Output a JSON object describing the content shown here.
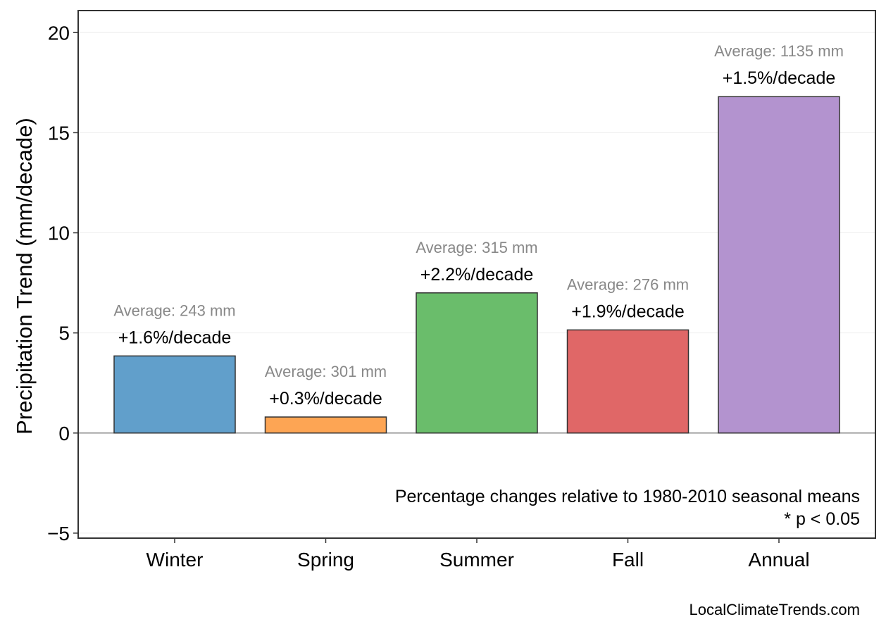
{
  "chart_data": {
    "type": "bar",
    "title": "",
    "xlabel": "",
    "ylabel": "Precipitation Trend (mm/decade)",
    "ylim": [
      -5.25,
      21.1
    ],
    "yticks": [
      -5,
      0,
      5,
      10,
      15,
      20
    ],
    "ytick_labels": [
      "−5",
      "0",
      "5",
      "10",
      "15",
      "20"
    ],
    "grid": "horizontal, light",
    "categories": [
      "Winter",
      "Spring",
      "Summer",
      "Fall",
      "Annual"
    ],
    "values": [
      3.85,
      0.8,
      7.0,
      5.15,
      16.8
    ],
    "colors": [
      "#619fcb",
      "#fda554",
      "#6abd6b",
      "#e06767",
      "#b393cf"
    ],
    "percent_labels": [
      "+1.6%/decade",
      "+0.3%/decade",
      "+2.2%/decade",
      "+1.9%/decade",
      "+1.5%/decade"
    ],
    "average_labels": [
      "Average: 243 mm",
      "Average: 301 mm",
      "Average: 315 mm",
      "Average: 276 mm",
      "Average: 1135 mm"
    ],
    "annotations": [
      "Percentage changes relative to 1980-2010 seasonal means",
      "* p < 0.05"
    ],
    "credit": "LocalClimateTrends.com"
  }
}
